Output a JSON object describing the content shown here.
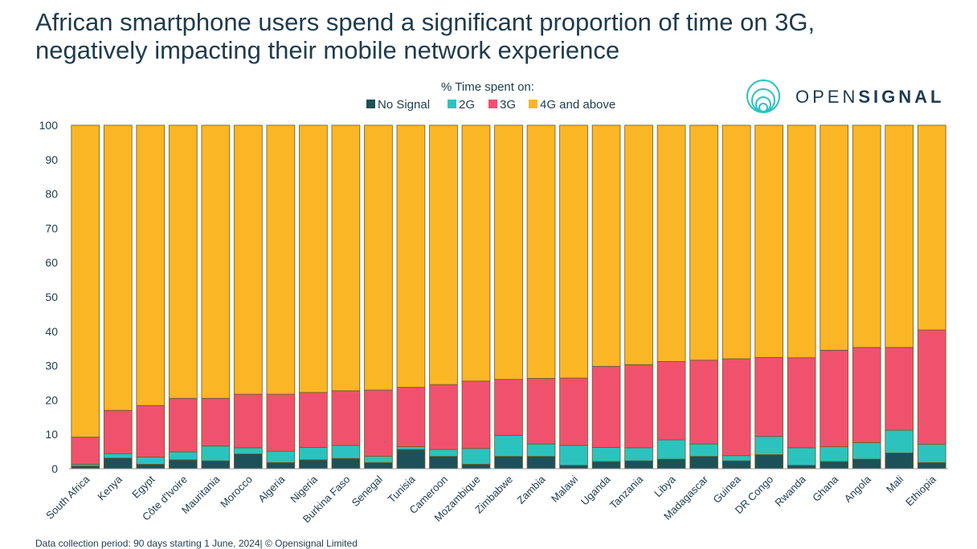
{
  "title_line1": "African smartphone users spend a significant proportion of time on 3G,",
  "title_line2": "negatively impacting their mobile network experience",
  "logo": {
    "text_light": "OPEN",
    "text_bold": "SIGNAL"
  },
  "footer": "Data collection period: 90 days starting 1 June, 2024| © Opensignal Limited",
  "colors": {
    "No Signal": "#1d5159",
    "2G": "#2cc3be",
    "3G": "#f0526e",
    "4G and above": "#fbb626",
    "border": "#6b5a2a"
  },
  "chart_data": {
    "type": "bar",
    "stacked": true,
    "legend_title": "% Time spent on:",
    "legend_position": "top-center",
    "ylim": [
      0,
      100
    ],
    "yticks": [
      0,
      10,
      20,
      30,
      40,
      50,
      60,
      70,
      80,
      90,
      100
    ],
    "grid": false,
    "categories": [
      "South Africa",
      "Kenya",
      "Egypt",
      "Côte d'Ivoire",
      "Mauritania",
      "Morocco",
      "Algeria",
      "Nigeria",
      "Burkina Faso",
      "Senegal",
      "Tunisia",
      "Cameroon",
      "Mozambique",
      "Zimbabwe",
      "Zambia",
      "Malawi",
      "Uganda",
      "Tanzania",
      "Libya",
      "Madagascar",
      "Guinea",
      "DR Congo",
      "Rwanda",
      "Ghana",
      "Angola",
      "Mali",
      "Ethiopia"
    ],
    "series": [
      {
        "name": "No Signal",
        "values": [
          0.8,
          3.1,
          1.3,
          2.6,
          2.3,
          4.3,
          1.8,
          2.6,
          3.0,
          1.8,
          5.6,
          3.6,
          1.3,
          3.6,
          3.6,
          1.0,
          2.1,
          2.3,
          2.8,
          3.6,
          2.3,
          4.1,
          1.0,
          2.1,
          2.8,
          4.6,
          1.8
        ]
      },
      {
        "name": "2G",
        "values": [
          0.5,
          1.3,
          2.1,
          2.3,
          4.3,
          1.8,
          3.3,
          3.6,
          3.8,
          1.8,
          0.8,
          2.0,
          4.6,
          6.1,
          3.6,
          5.8,
          4.1,
          3.8,
          5.6,
          3.6,
          1.5,
          5.3,
          5.1,
          4.3,
          4.8,
          6.6,
          5.3
        ]
      },
      {
        "name": "3G",
        "values": [
          7.9,
          12.6,
          15.0,
          15.6,
          13.9,
          15.6,
          16.6,
          16.0,
          15.9,
          19.3,
          17.3,
          18.9,
          19.6,
          16.3,
          19.1,
          19.6,
          23.6,
          24.2,
          22.8,
          24.4,
          28.2,
          23.0,
          26.2,
          28.1,
          27.7,
          24.1,
          33.3
        ]
      },
      {
        "name": "4G and above",
        "values": [
          90.8,
          83.0,
          81.6,
          79.5,
          79.5,
          78.3,
          78.3,
          77.8,
          77.3,
          77.1,
          76.3,
          75.5,
          74.5,
          74.0,
          73.7,
          73.6,
          70.2,
          69.7,
          68.8,
          68.4,
          68.0,
          67.6,
          67.7,
          65.5,
          64.7,
          64.7,
          59.6
        ]
      }
    ]
  }
}
